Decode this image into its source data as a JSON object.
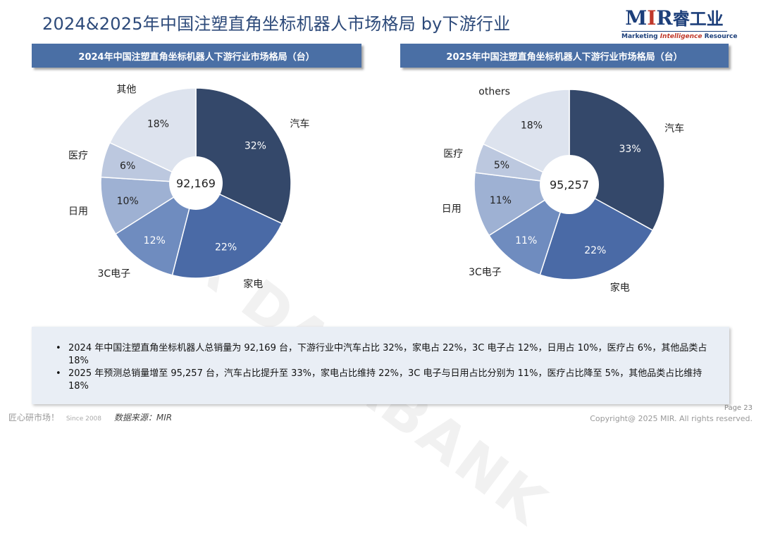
{
  "title": "2024&2025年中国注塑直角坐标机器人市场格局 by下游行业",
  "logo": {
    "brand_m": "M",
    "brand_i": "I",
    "brand_r": "R",
    "brand_cn": "睿工业",
    "tagline_1": "Marketing ",
    "tagline_2": "Intelligence",
    "tagline_3": " Resource"
  },
  "watermark": "MIR DATABANK",
  "chart_data": [
    {
      "type": "pie",
      "title": "2024年中国注塑直角坐标机器人下游行业市场格局（台）",
      "center_label": "92,169",
      "categories": [
        "汽车",
        "家电",
        "3C电子",
        "日用",
        "医疗",
        "其他"
      ],
      "values": [
        32,
        22,
        12,
        10,
        6,
        18
      ],
      "value_labels": [
        "32%",
        "22%",
        "12%",
        "10%",
        "6%",
        "18%"
      ],
      "colors": [
        "#34486a",
        "#4a6aa6",
        "#6f8cbf",
        "#9eb1d3",
        "#bcc8df",
        "#dde3ee"
      ]
    },
    {
      "type": "pie",
      "title": "2025年中国注塑直角坐标机器人下游行业市场格局（台）",
      "center_label": "95,257",
      "categories": [
        "汽车",
        "家电",
        "3C电子",
        "日用",
        "医疗",
        "others"
      ],
      "values": [
        33,
        22,
        11,
        11,
        5,
        18
      ],
      "value_labels": [
        "33%",
        "22%",
        "11%",
        "11%",
        "5%",
        "18%"
      ],
      "colors": [
        "#34486a",
        "#4a6aa6",
        "#6f8cbf",
        "#9eb1d3",
        "#bcc8df",
        "#dde3ee"
      ]
    }
  ],
  "summary": [
    "2024 年中国注塑直角坐标机器人总销量为 92,169 台，下游行业中汽车占比 32%，家电占 22%，3C 电子占 12%，日用占 10%，医疗占 6%，其他品类占 18%",
    "2025 年预测总销量增至 95,257 台，汽车占比提升至 33%，家电占比维持 22%，3C 电子与日用占比分别为 11%，医疗占比降至 5%，其他品类占比维持 18%"
  ],
  "footer": {
    "slogan": "匠心研市场！",
    "since": "Since 2008",
    "source": "数据来源：MIR",
    "page": "Page 23",
    "copyright": "Copyright@ 2025 MIR. All rights reserved."
  }
}
